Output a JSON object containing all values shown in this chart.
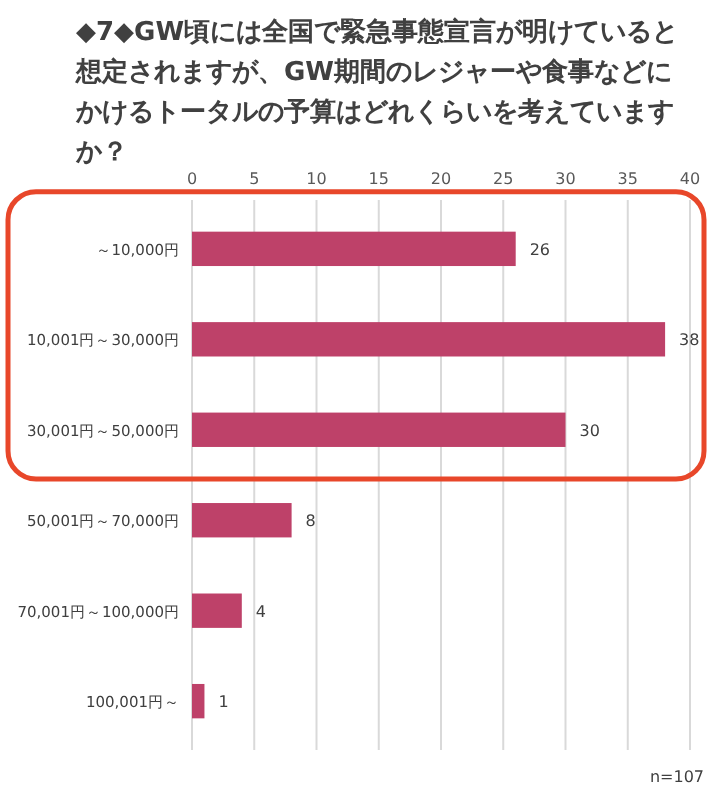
{
  "chart_data": {
    "type": "bar",
    "orientation": "horizontal",
    "title": "◆7◆GW頃には全国で緊急事態宣言が明けていると想定されますが、GW期間のレジャーや食事などにかけるトータルの予算はどれくらいを考えていますか？",
    "categories": [
      "～10,000円",
      "10,001円～30,000円",
      "30,001円～50,000円",
      "50,001円～70,000円",
      "70,001円～100,000円",
      "100,001円～"
    ],
    "values": [
      26,
      38,
      30,
      8,
      4,
      1
    ],
    "color": "#be4169",
    "data_labels": true,
    "grid": "x",
    "xlim": [
      0,
      40
    ],
    "xticks": [
      0,
      5,
      10,
      15,
      20,
      25,
      30,
      35,
      40
    ],
    "annotations": [
      "n=107"
    ]
  }
}
